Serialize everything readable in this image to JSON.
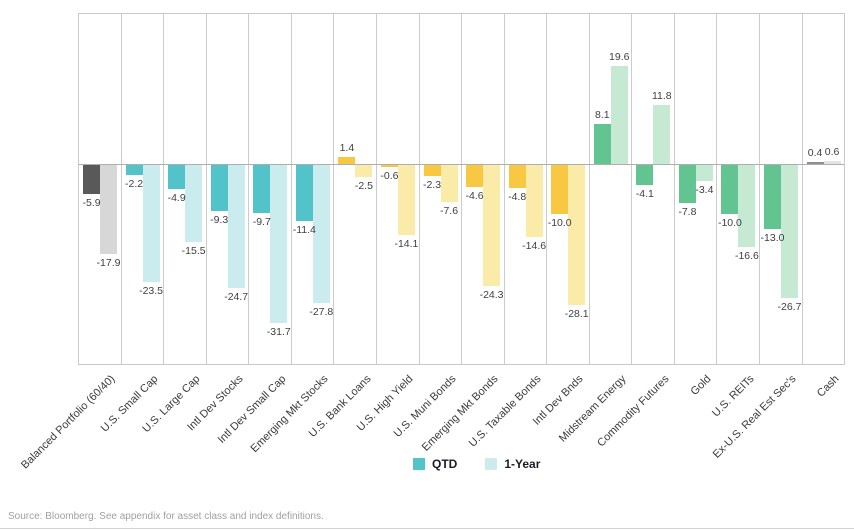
{
  "chart_data": {
    "type": "bar",
    "title": "",
    "categories": [
      "Balanced Portfolio (60/40)",
      "U.S. Small Cap",
      "U.S. Large Cap",
      "Intl Dev Stocks",
      "Intl Dev Small Cap",
      "Emerging Mkt Stocks",
      "U.S. Bank Loans",
      "U.S. High Yield",
      "U.S. Muni Bonds",
      "Emerging Mkt Bonds",
      "U.S. Taxable Bonds",
      "Intl Dev Bnds",
      "Midstream Energy",
      "Commodity Futures",
      "Gold",
      "U.S. REITs",
      "Ex-U.S. Real Est Sec's",
      "Cash"
    ],
    "series": [
      {
        "name": "QTD",
        "values": [
          -5.9,
          -2.2,
          -4.9,
          -9.3,
          -9.7,
          -11.4,
          1.4,
          -0.6,
          -2.3,
          -4.6,
          -4.8,
          -10.0,
          8.1,
          -4.1,
          -7.8,
          -10.0,
          -13.0,
          0.4
        ]
      },
      {
        "name": "1-Year",
        "values": [
          -17.9,
          -23.5,
          -15.5,
          -24.7,
          -31.7,
          -27.8,
          -2.5,
          -14.1,
          -7.6,
          -24.3,
          -14.6,
          -28.1,
          19.6,
          11.8,
          -3.4,
          -16.6,
          -26.7,
          0.6
        ]
      }
    ],
    "groups": [
      "neutral",
      "stocks",
      "stocks",
      "stocks",
      "stocks",
      "stocks",
      "bonds",
      "bonds",
      "bonds",
      "bonds",
      "bonds",
      "bonds",
      "alts",
      "alts",
      "alts",
      "alts",
      "alts",
      "cash"
    ],
    "palette": {
      "neutral": [
        "#595959",
        "#d7d7d7"
      ],
      "stocks": [
        "#52c3c8",
        "#cbecee"
      ],
      "bonds": [
        "#f8c843",
        "#fbeba8"
      ],
      "alts": [
        "#61c491",
        "#c6e9d3"
      ],
      "cash": [
        "#8f8f8f",
        "#e3e3e3"
      ]
    },
    "ylim": [
      -40,
      30
    ],
    "value_label_format": "one-decimal",
    "grid": "vertical-category-separators",
    "legend_position": "bottom-center"
  },
  "legend": {
    "items": [
      {
        "label": "QTD",
        "color": "#52c3c8"
      },
      {
        "label": "1-Year",
        "color": "#cfeaec"
      }
    ]
  },
  "footer": {
    "source_note": "Source: Bloomberg. See appendix for asset class and index definitions."
  }
}
